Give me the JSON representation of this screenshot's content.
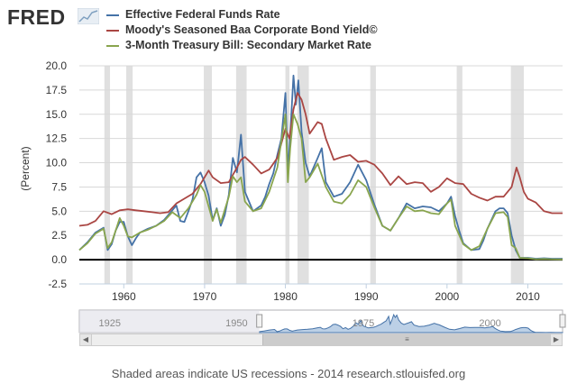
{
  "header": {
    "logo_text": "FRED"
  },
  "footer": {
    "text": "Shaded areas indicate US recessions - 2014 research.stlouisfed.org"
  },
  "navigator": {
    "labels": [
      "1925",
      "1950",
      "1975",
      "2000"
    ],
    "scroll_left_icon": "arrow-left-icon",
    "scroll_right_icon": "arrow-right-icon",
    "thumb_grip_icon": "grip-icon"
  },
  "chart_data": {
    "type": "line",
    "title": "",
    "xlabel": "",
    "ylabel": "(Percent)",
    "xlim": [
      1954.5,
      2014.3
    ],
    "ylim": [
      -2.5,
      20.0
    ],
    "yticks": [
      "-2.5",
      "0.0",
      "2.5",
      "5.0",
      "7.5",
      "10.0",
      "12.5",
      "15.0",
      "17.5",
      "20.0"
    ],
    "xticks": [
      "1960",
      "1970",
      "1980",
      "1990",
      "2000",
      "2010"
    ],
    "grid": true,
    "legend_position": "top",
    "recessions": [
      [
        1957.6,
        1958.3
      ],
      [
        1960.3,
        1961.1
      ],
      [
        1969.9,
        1970.9
      ],
      [
        1973.9,
        1975.2
      ],
      [
        1980.0,
        1980.5
      ],
      [
        1981.5,
        1982.9
      ],
      [
        1990.5,
        1991.2
      ],
      [
        2001.2,
        2001.9
      ],
      [
        2007.9,
        2009.5
      ]
    ],
    "series": [
      {
        "name": "Effective Federal Funds Rate",
        "color": "#4572A7",
        "x": [
          1954.5,
          1955.5,
          1956.5,
          1957.5,
          1958.0,
          1958.5,
          1959.0,
          1959.5,
          1960.0,
          1960.5,
          1961.0,
          1961.5,
          1962.0,
          1963.0,
          1964.0,
          1965.0,
          1966.0,
          1966.5,
          1967.0,
          1967.5,
          1968.0,
          1968.5,
          1969.0,
          1969.5,
          1970.0,
          1970.5,
          1971.0,
          1971.5,
          1972.0,
          1972.5,
          1973.0,
          1973.5,
          1974.0,
          1974.5,
          1975.0,
          1975.5,
          1976.0,
          1977.0,
          1977.5,
          1978.0,
          1978.5,
          1979.0,
          1979.5,
          1980.0,
          1980.3,
          1980.6,
          1981.0,
          1981.3,
          1981.6,
          1982.0,
          1982.5,
          1983.0,
          1984.0,
          1984.5,
          1985.0,
          1986.0,
          1987.0,
          1988.0,
          1989.0,
          1989.5,
          1990.0,
          1991.0,
          1992.0,
          1993.0,
          1994.0,
          1995.0,
          1996.0,
          1997.0,
          1998.0,
          1999.0,
          2000.0,
          2000.5,
          2001.0,
          2001.5,
          2002.0,
          2003.0,
          2004.0,
          2004.5,
          2005.0,
          2006.0,
          2006.5,
          2007.0,
          2007.5,
          2008.0,
          2008.5,
          2009.0,
          2010.0,
          2011.0,
          2012.0,
          2013.0,
          2014.3
        ],
        "y": [
          1.0,
          1.8,
          2.8,
          3.3,
          1.0,
          1.6,
          3.0,
          3.9,
          3.9,
          2.4,
          1.5,
          2.2,
          2.8,
          3.2,
          3.5,
          4.1,
          5.1,
          5.6,
          4.0,
          3.9,
          5.0,
          6.2,
          8.5,
          9.0,
          8.0,
          6.6,
          4.1,
          5.3,
          3.5,
          4.6,
          6.7,
          10.5,
          9.0,
          12.9,
          7.0,
          6.0,
          5.0,
          5.6,
          6.5,
          7.8,
          8.9,
          10.8,
          12.5,
          17.2,
          9.0,
          12.8,
          19.0,
          16.0,
          18.5,
          13.2,
          10.0,
          8.6,
          10.5,
          11.5,
          8.0,
          6.5,
          6.8,
          8.0,
          9.8,
          9.0,
          8.2,
          5.7,
          3.5,
          3.0,
          4.3,
          5.8,
          5.3,
          5.5,
          5.4,
          5.0,
          5.8,
          6.5,
          4.5,
          3.0,
          1.7,
          1.0,
          1.1,
          2.0,
          3.2,
          5.0,
          5.3,
          5.3,
          4.8,
          2.5,
          1.0,
          0.2,
          0.2,
          0.1,
          0.15,
          0.1,
          0.1
        ]
      },
      {
        "name": "Moody's Seasoned Baa Corporate Bond Yield©",
        "color": "#AA4643",
        "x": [
          1954.5,
          1955.5,
          1956.5,
          1957.5,
          1958.5,
          1959.5,
          1960.5,
          1961.5,
          1962.5,
          1963.5,
          1964.5,
          1965.5,
          1966.5,
          1967.5,
          1968.5,
          1969.5,
          1970.5,
          1971.0,
          1972.0,
          1973.0,
          1974.0,
          1974.5,
          1975.0,
          1976.0,
          1977.0,
          1978.0,
          1979.0,
          1980.0,
          1980.5,
          1981.0,
          1981.5,
          1982.0,
          1982.5,
          1983.0,
          1984.0,
          1984.5,
          1985.0,
          1986.0,
          1987.0,
          1988.0,
          1989.0,
          1990.0,
          1991.0,
          1992.0,
          1993.0,
          1994.0,
          1995.0,
          1996.0,
          1997.0,
          1998.0,
          1999.0,
          2000.0,
          2001.0,
          2002.0,
          2003.0,
          2004.0,
          2005.0,
          2006.0,
          2007.0,
          2008.0,
          2008.6,
          2009.0,
          2009.5,
          2010.0,
          2011.0,
          2012.0,
          2013.0,
          2014.3
        ],
        "y": [
          3.5,
          3.6,
          4.0,
          5.0,
          4.7,
          5.1,
          5.2,
          5.1,
          5.0,
          4.9,
          4.8,
          4.9,
          5.8,
          6.3,
          6.8,
          7.8,
          9.2,
          8.5,
          7.9,
          8.0,
          9.5,
          10.3,
          10.6,
          9.8,
          8.9,
          9.3,
          10.5,
          13.5,
          12.5,
          15.5,
          17.2,
          16.5,
          15.0,
          13.0,
          14.2,
          14.0,
          12.5,
          10.3,
          10.6,
          10.8,
          10.1,
          10.2,
          9.8,
          8.9,
          7.7,
          8.6,
          7.8,
          8.0,
          7.9,
          7.0,
          7.5,
          8.4,
          7.9,
          7.8,
          6.8,
          6.4,
          6.1,
          6.5,
          6.5,
          7.5,
          9.5,
          8.5,
          7.0,
          6.3,
          5.9,
          5.0,
          4.8,
          4.8
        ]
      },
      {
        "name": "3-Month Treasury Bill: Secondary Market Rate",
        "color": "#89A54E",
        "x": [
          1954.5,
          1955.5,
          1956.5,
          1957.5,
          1958.0,
          1958.5,
          1959.0,
          1959.5,
          1960.0,
          1960.5,
          1961.0,
          1962.0,
          1963.0,
          1964.0,
          1965.0,
          1966.0,
          1967.0,
          1968.0,
          1969.0,
          1969.5,
          1970.0,
          1971.0,
          1971.5,
          1972.0,
          1973.0,
          1973.5,
          1974.0,
          1974.5,
          1975.0,
          1976.0,
          1977.0,
          1978.0,
          1979.0,
          1980.0,
          1980.3,
          1980.6,
          1981.0,
          1981.5,
          1982.0,
          1982.5,
          1983.0,
          1984.0,
          1985.0,
          1986.0,
          1987.0,
          1988.0,
          1989.0,
          1990.0,
          1991.0,
          1992.0,
          1993.0,
          1994.0,
          1995.0,
          1996.0,
          1997.0,
          1998.0,
          1999.0,
          2000.0,
          2000.5,
          2001.0,
          2002.0,
          2003.0,
          2004.0,
          2005.0,
          2006.0,
          2007.0,
          2007.5,
          2008.0,
          2008.5,
          2009.0,
          2010.0,
          2011.0,
          2012.0,
          2013.0,
          2014.3
        ],
        "y": [
          1.0,
          1.7,
          2.7,
          3.2,
          1.2,
          1.8,
          3.0,
          4.3,
          3.5,
          2.4,
          2.3,
          2.8,
          3.1,
          3.5,
          4.0,
          4.9,
          4.3,
          5.3,
          6.7,
          7.7,
          7.0,
          4.0,
          5.2,
          3.8,
          6.5,
          8.6,
          8.0,
          8.5,
          6.0,
          5.0,
          5.3,
          7.0,
          9.5,
          15.0,
          8.0,
          11.5,
          15.0,
          14.0,
          12.5,
          8.0,
          8.5,
          9.9,
          7.5,
          6.0,
          5.8,
          6.7,
          8.2,
          7.5,
          5.4,
          3.5,
          3.0,
          4.3,
          5.5,
          5.0,
          5.1,
          4.8,
          4.7,
          5.8,
          6.2,
          3.5,
          1.6,
          1.0,
          1.4,
          3.2,
          4.8,
          4.9,
          4.4,
          1.5,
          1.2,
          0.2,
          0.15,
          0.05,
          0.08,
          0.05,
          0.03
        ]
      }
    ]
  }
}
